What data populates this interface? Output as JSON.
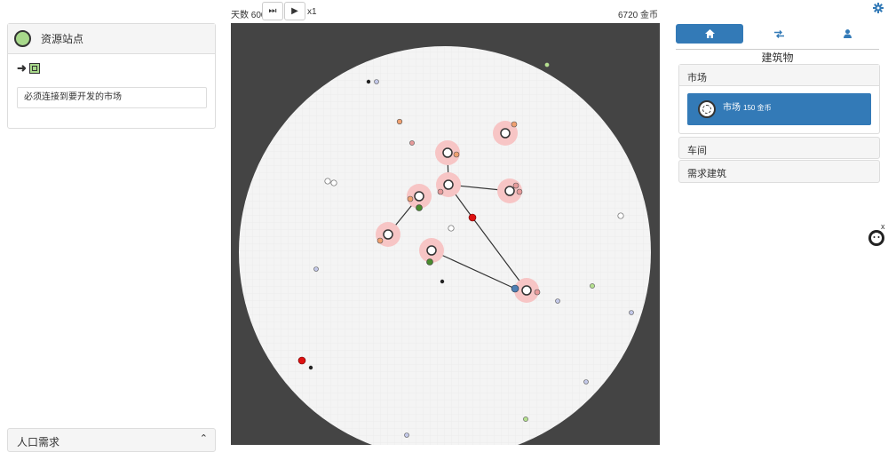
{
  "left_panel": {
    "title": "资源站点",
    "arrow": "➜",
    "note": "必须连接到要开发的市场"
  },
  "population_panel": {
    "label": "人口需求",
    "chevron": "⌃"
  },
  "topbar": {
    "days": "天数 600",
    "step_icon": "⏭",
    "play_icon": "▶",
    "speed": "x1",
    "gold": "6720 金币"
  },
  "right_panel": {
    "tabs": [
      {
        "name": "home-icon",
        "active": true
      },
      {
        "name": "transfer-icon",
        "active": false
      },
      {
        "name": "user-icon",
        "active": false
      }
    ],
    "heading": "建筑物",
    "sections": {
      "market": "市场",
      "workshop": "车间",
      "demand": "需求建筑"
    },
    "market_card": {
      "name": "市场",
      "price": "150 金币"
    }
  },
  "close_label": "x",
  "colors": {
    "accent": "#337ab7",
    "map_bg": "#444444",
    "world": "#f4f4f4",
    "halo": "#f7c5c5",
    "resource_green": "#a8d98b"
  }
}
